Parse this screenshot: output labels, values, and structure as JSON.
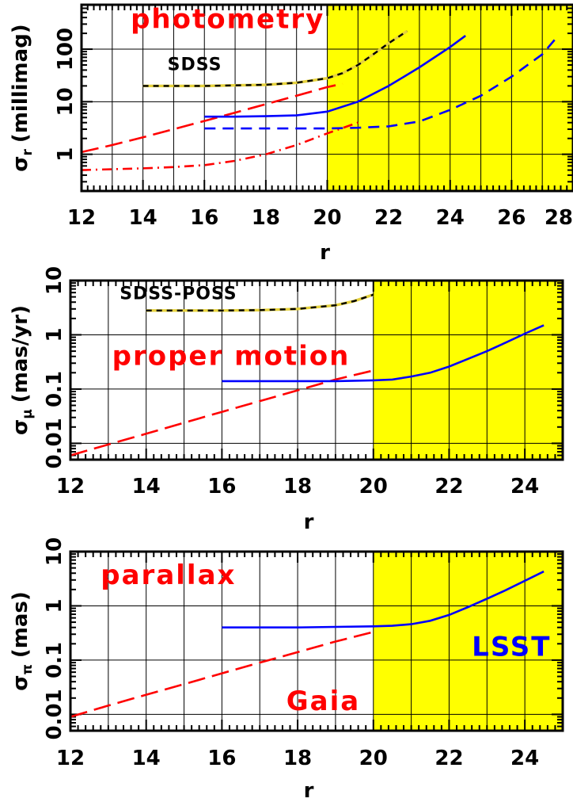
{
  "colors": {
    "shade": "#ffff00",
    "red": "#ff0000",
    "blue": "#0000ff",
    "yellow": "#e6d23c",
    "black": "#000000"
  },
  "chart_data": [
    {
      "type": "line",
      "name": "photometry",
      "xlabel": "r",
      "ylabel": "σ_r (millimag)",
      "ylabel_main": "σ",
      "ylabel_sub": "r",
      "ylabel_unit": "(millimag)",
      "xlim": [
        12,
        28
      ],
      "ylim": [
        0.2,
        700
      ],
      "yscale": "log",
      "grid": true,
      "shade_xrange": [
        20,
        28
      ],
      "x_ticks": [
        12,
        14,
        16,
        18,
        20,
        22,
        24,
        26,
        28
      ],
      "x_tick_labels": [
        "12",
        "14",
        "16",
        "18",
        "20",
        "22",
        "24",
        "26",
        "28"
      ],
      "y_ticks": [
        1,
        10,
        100
      ],
      "y_tick_labels": [
        "1",
        "10",
        "100"
      ],
      "annotations": [
        {
          "text": "photometry",
          "x": 13.6,
          "y": 250,
          "color": "red",
          "size": 34
        },
        {
          "text": "SDSS",
          "x": 14.8,
          "y": 40,
          "color": "black",
          "size": 22
        }
      ],
      "series": [
        {
          "name": "SDSS",
          "style": "sdss",
          "x": [
            14,
            15,
            16,
            17,
            18,
            19,
            20,
            20.5,
            21,
            21.5,
            22,
            22.6
          ],
          "y": [
            20,
            20,
            20,
            20.5,
            21,
            23,
            28,
            35,
            50,
            80,
            130,
            220
          ]
        },
        {
          "name": "",
          "style": "red-longdash",
          "x": [
            12,
            13,
            14,
            15,
            16,
            17,
            18,
            19,
            20,
            20.5
          ],
          "y": [
            1.1,
            1.5,
            2.1,
            3.0,
            4.3,
            6.2,
            9.0,
            13,
            19,
            22
          ]
        },
        {
          "name": "",
          "style": "red-dashdot",
          "x": [
            12,
            13,
            14,
            15,
            16,
            17,
            18,
            19,
            20,
            21
          ],
          "y": [
            0.5,
            0.52,
            0.54,
            0.57,
            0.62,
            0.75,
            1.0,
            1.5,
            2.5,
            4.0
          ]
        },
        {
          "name": "",
          "style": "blue-solid",
          "x": [
            16,
            17,
            18,
            19,
            20,
            21,
            22,
            23,
            24,
            24.5
          ],
          "y": [
            5.2,
            5.2,
            5.3,
            5.5,
            6.5,
            10,
            20,
            45,
            110,
            180
          ]
        },
        {
          "name": "",
          "style": "blue-dash",
          "x": [
            16,
            18,
            20,
            21,
            22,
            23,
            24,
            25,
            26,
            27,
            27.4
          ],
          "y": [
            3.1,
            3.1,
            3.1,
            3.2,
            3.4,
            4.2,
            7,
            13,
            30,
            80,
            150
          ]
        }
      ]
    },
    {
      "type": "line",
      "name": "proper motion",
      "xlabel": "r",
      "ylabel": "σ_μ (mas/yr)",
      "ylabel_main": "σ",
      "ylabel_sub": "μ",
      "ylabel_unit": "(mas/yr)",
      "xlim": [
        12,
        25
      ],
      "ylim": [
        0.005,
        10
      ],
      "yscale": "log",
      "grid": true,
      "shade_xrange": [
        20,
        25
      ],
      "x_ticks": [
        12,
        14,
        16,
        18,
        20,
        22,
        24
      ],
      "x_tick_labels": [
        "12",
        "14",
        "16",
        "18",
        "20",
        "22",
        "24"
      ],
      "y_ticks": [
        0.01,
        0.1,
        1,
        10
      ],
      "y_tick_labels": [
        "0.01",
        "0.1",
        "1",
        "10"
      ],
      "annotations": [
        {
          "text": "SDSS-POSS",
          "x": 13.3,
          "y": 4.5,
          "color": "black",
          "size": 22
        },
        {
          "text": "proper motion",
          "x": 13.1,
          "y": 0.28,
          "color": "red",
          "size": 34
        }
      ],
      "series": [
        {
          "name": "SDSS-POSS",
          "style": "sdss",
          "x": [
            14,
            15,
            16,
            17,
            18,
            19,
            19.5,
            20
          ],
          "y": [
            2.8,
            2.8,
            2.8,
            2.85,
            3.0,
            3.5,
            4.2,
            5.5
          ]
        },
        {
          "name": "",
          "style": "red-longdash",
          "x": [
            12,
            13,
            14,
            15,
            16,
            17,
            18,
            19,
            20
          ],
          "y": [
            0.006,
            0.0095,
            0.015,
            0.024,
            0.038,
            0.06,
            0.095,
            0.15,
            0.22
          ]
        },
        {
          "name": "",
          "style": "blue-solid",
          "x": [
            16,
            17,
            18,
            19,
            20,
            20.5,
            21,
            21.5,
            22,
            22.5,
            23,
            23.5,
            24,
            24.5
          ],
          "y": [
            0.14,
            0.14,
            0.14,
            0.14,
            0.145,
            0.15,
            0.17,
            0.2,
            0.26,
            0.36,
            0.5,
            0.72,
            1.05,
            1.5
          ]
        }
      ]
    },
    {
      "type": "line",
      "name": "parallax",
      "xlabel": "r",
      "ylabel": "σ_π (mas)",
      "ylabel_main": "σ",
      "ylabel_sub": "π",
      "ylabel_unit": "(mas)",
      "xlim": [
        12,
        25
      ],
      "ylim": [
        0.005,
        10
      ],
      "yscale": "log",
      "grid": true,
      "shade_xrange": [
        20,
        25
      ],
      "x_ticks": [
        12,
        14,
        16,
        18,
        20,
        22,
        24
      ],
      "x_tick_labels": [
        "12",
        "14",
        "16",
        "18",
        "20",
        "22",
        "24"
      ],
      "y_ticks": [
        0.01,
        0.1,
        1,
        10
      ],
      "y_tick_labels": [
        "0.01",
        "0.1",
        "1",
        "10"
      ],
      "annotations": [
        {
          "text": "parallax",
          "x": 12.8,
          "y": 2.5,
          "color": "red",
          "size": 34
        },
        {
          "text": "Gaia",
          "x": 17.7,
          "y": 0.012,
          "color": "red",
          "size": 34
        },
        {
          "text": "LSST",
          "x": 22.6,
          "y": 0.12,
          "color": "blue",
          "size": 34
        }
      ],
      "series": [
        {
          "name": "",
          "style": "blue-solid",
          "x": [
            16,
            17,
            18,
            19,
            20,
            20.5,
            21,
            21.5,
            22,
            22.5,
            23,
            23.5,
            24,
            24.5
          ],
          "y": [
            0.4,
            0.4,
            0.4,
            0.41,
            0.42,
            0.43,
            0.46,
            0.53,
            0.68,
            0.95,
            1.35,
            1.95,
            2.9,
            4.3
          ]
        },
        {
          "name": "",
          "style": "red-longdash",
          "x": [
            12,
            13,
            14,
            15,
            16,
            17,
            18,
            19,
            20
          ],
          "y": [
            0.009,
            0.0145,
            0.023,
            0.036,
            0.057,
            0.09,
            0.14,
            0.22,
            0.33
          ]
        }
      ]
    }
  ]
}
